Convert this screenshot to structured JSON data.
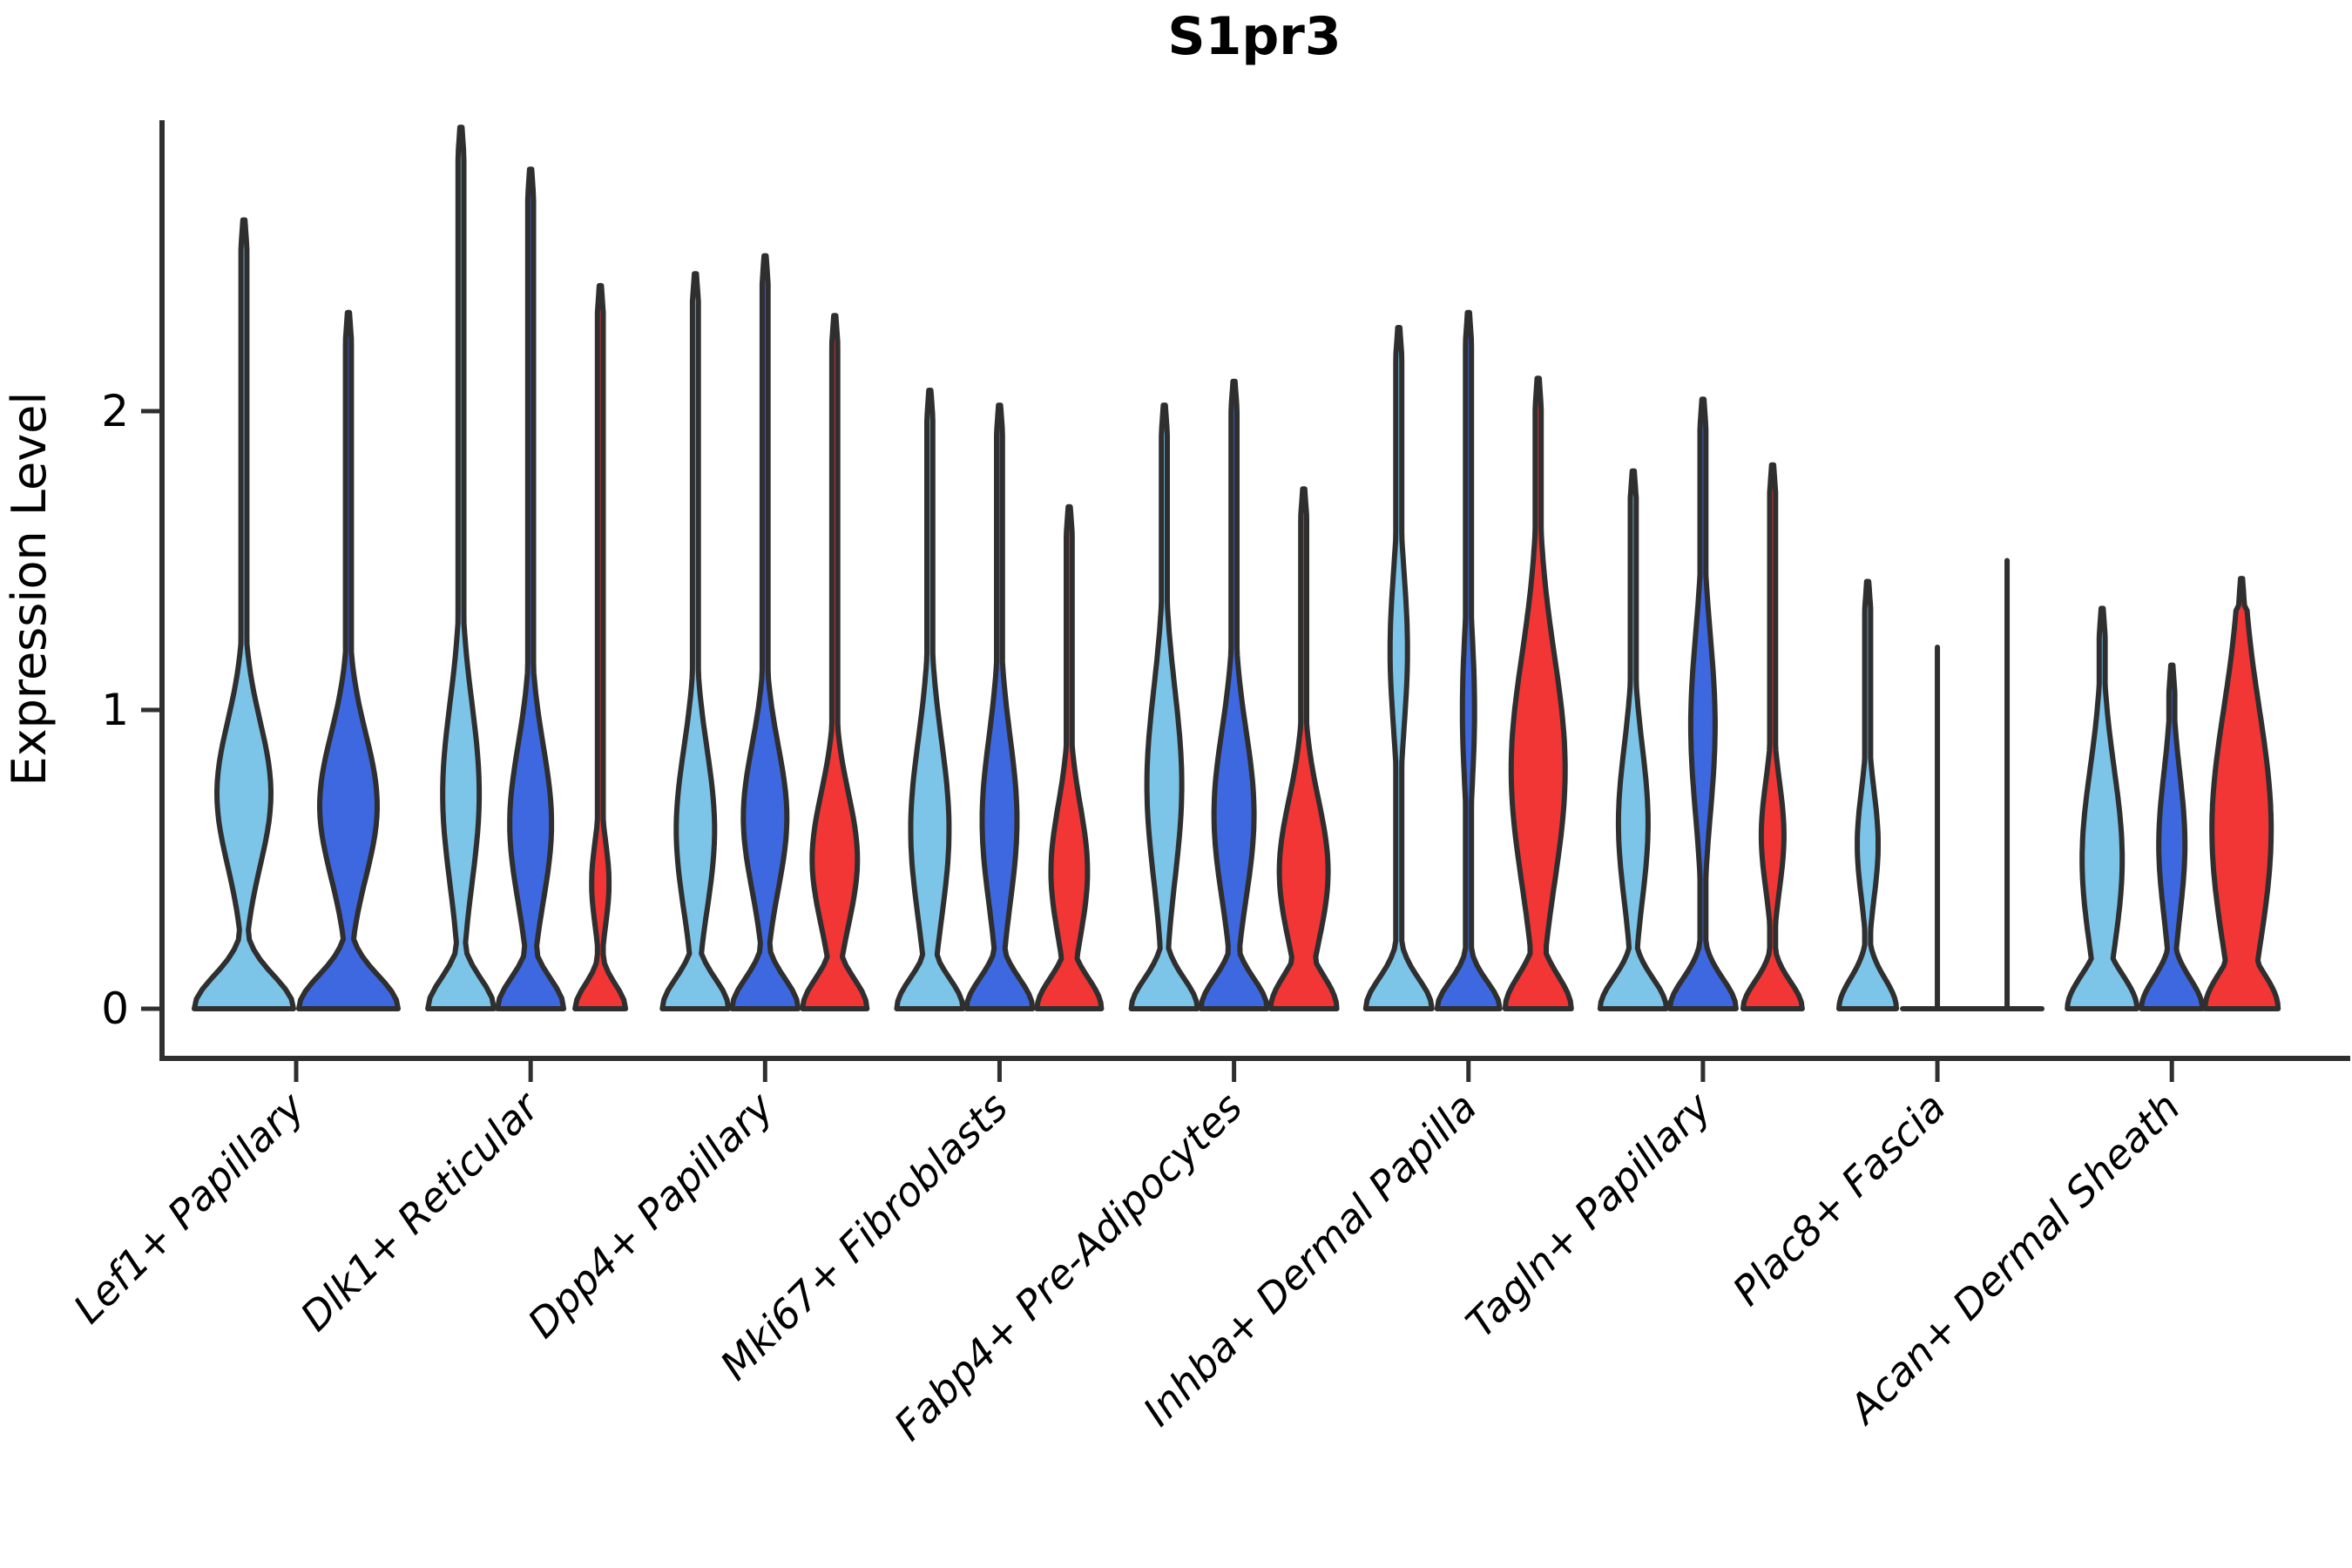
{
  "chart_data": {
    "type": "violin",
    "title": "S1pr3",
    "xlabel": "",
    "ylabel": "Expression Level",
    "yticks": [
      0,
      1,
      2
    ],
    "ylim": [
      -0.17,
      2.97
    ],
    "grid": false,
    "legend": "none",
    "outline_color": "#2F2F2F",
    "background_color": "#FFFFFF",
    "split_colors": {
      "light_blue": "#7CC5E9",
      "dark_blue": "#3D68E0",
      "red": "#F23535"
    },
    "categories": [
      "Lef1+ Papillary",
      "Dlk1+ Reticular",
      "Dpp4+ Papillary",
      "Mki67+ Fibroblasts",
      "Fabp4+ Pre-Adipocytes",
      "Inhba+ Dermal Papilla",
      "Tagln+ Papillary",
      "Plac8+ Fascia",
      "Acan+ Dermal Sheath"
    ],
    "groups": [
      {
        "label": "Lef1+ Papillary",
        "violins": [
          {
            "split": "light_blue",
            "kind": "violin",
            "offset": -60,
            "tip": 2.64,
            "base_hw": 57,
            "base_sigma": 0.11,
            "bulge_center": 0.72,
            "bulge_hw": 31,
            "bulge_sigma": 0.24
          },
          {
            "split": "dark_blue",
            "kind": "violin",
            "offset": 60,
            "tip": 2.33,
            "base_hw": 57,
            "base_sigma": 0.11,
            "bulge_center": 0.68,
            "bulge_hw": 33,
            "bulge_sigma": 0.24
          }
        ]
      },
      {
        "label": "Dlk1+ Reticular",
        "violins": [
          {
            "split": "light_blue",
            "kind": "violin",
            "offset": -80,
            "tip": 2.95,
            "base_hw": 38,
            "base_sigma": 0.1,
            "bulge_center": 0.72,
            "bulge_hw": 21,
            "bulge_sigma": 0.3
          },
          {
            "split": "dark_blue",
            "kind": "violin",
            "offset": 0,
            "tip": 2.81,
            "base_hw": 38,
            "base_sigma": 0.1,
            "bulge_center": 0.62,
            "bulge_hw": 24,
            "bulge_sigma": 0.26
          },
          {
            "split": "red",
            "kind": "violin",
            "offset": 80,
            "tip": 2.42,
            "base_hw": 29,
            "base_sigma": 0.08,
            "bulge_center": 0.42,
            "bulge_hw": 10,
            "bulge_sigma": 0.14
          }
        ]
      },
      {
        "label": "Dpp4+ Papillary",
        "violins": [
          {
            "split": "light_blue",
            "kind": "violin",
            "offset": -80,
            "tip": 2.46,
            "base_hw": 38,
            "base_sigma": 0.1,
            "bulge_center": 0.6,
            "bulge_hw": 22,
            "bulge_sigma": 0.27
          },
          {
            "split": "dark_blue",
            "kind": "violin",
            "offset": 0,
            "tip": 2.52,
            "base_hw": 38,
            "base_sigma": 0.1,
            "bulge_center": 0.64,
            "bulge_hw": 25,
            "bulge_sigma": 0.24
          },
          {
            "split": "red",
            "kind": "violin",
            "offset": 80,
            "tip": 2.32,
            "base_hw": 37,
            "base_sigma": 0.1,
            "bulge_center": 0.5,
            "bulge_hw": 26,
            "bulge_sigma": 0.22
          }
        ]
      },
      {
        "label": "Mki67+ Fibroblasts",
        "violins": [
          {
            "split": "light_blue",
            "kind": "violin",
            "offset": -80,
            "tip": 2.07,
            "base_hw": 38,
            "base_sigma": 0.1,
            "bulge_center": 0.6,
            "bulge_hw": 22,
            "bulge_sigma": 0.3
          },
          {
            "split": "dark_blue",
            "kind": "violin",
            "offset": 0,
            "tip": 2.02,
            "base_hw": 38,
            "base_sigma": 0.1,
            "bulge_center": 0.63,
            "bulge_hw": 20,
            "bulge_sigma": 0.28
          },
          {
            "split": "red",
            "kind": "violin",
            "offset": 80,
            "tip": 1.68,
            "base_hw": 37,
            "base_sigma": 0.1,
            "bulge_center": 0.46,
            "bulge_hw": 21,
            "bulge_sigma": 0.22
          }
        ]
      },
      {
        "label": "Fabp4+ Pre-Adipocytes",
        "violins": [
          {
            "split": "light_blue",
            "kind": "violin",
            "offset": -80,
            "tip": 2.02,
            "base_hw": 38,
            "base_sigma": 0.1,
            "bulge_center": 0.75,
            "bulge_hw": 20,
            "bulge_sigma": 0.32
          },
          {
            "split": "dark_blue",
            "kind": "violin",
            "offset": 0,
            "tip": 2.1,
            "base_hw": 38,
            "base_sigma": 0.1,
            "bulge_center": 0.65,
            "bulge_hw": 23,
            "bulge_sigma": 0.28
          },
          {
            "split": "red",
            "kind": "violin",
            "offset": 80,
            "tip": 1.74,
            "base_hw": 38,
            "base_sigma": 0.11,
            "bulge_center": 0.46,
            "bulge_hw": 28,
            "bulge_sigma": 0.24
          }
        ]
      },
      {
        "label": "Inhba+ Dermal Papilla",
        "violins": [
          {
            "split": "light_blue",
            "kind": "violin",
            "offset": -80,
            "tip": 2.28,
            "base_hw": 38,
            "base_sigma": 0.1,
            "bulge_center": 1.2,
            "bulge_hw": 10,
            "bulge_sigma": 0.26
          },
          {
            "split": "dark_blue",
            "kind": "violin",
            "offset": 0,
            "tip": 2.33,
            "base_hw": 36,
            "base_sigma": 0.09,
            "bulge_center": 1.0,
            "bulge_hw": 7,
            "bulge_sigma": 0.26
          },
          {
            "split": "red",
            "kind": "violin",
            "offset": 80,
            "tip": 2.11,
            "base_hw": 38,
            "base_sigma": 0.11,
            "bulge_center": 0.8,
            "bulge_hw": 31,
            "bulge_sigma": 0.38
          }
        ]
      },
      {
        "label": "Tagln+ Papillary",
        "violins": [
          {
            "split": "light_blue",
            "kind": "violin",
            "offset": -80,
            "tip": 1.8,
            "base_hw": 38,
            "base_sigma": 0.1,
            "bulge_center": 0.62,
            "bulge_hw": 17,
            "bulge_sigma": 0.26
          },
          {
            "split": "dark_blue",
            "kind": "violin",
            "offset": 0,
            "tip": 2.04,
            "base_hw": 38,
            "base_sigma": 0.1,
            "bulge_center": 0.95,
            "bulge_hw": 14,
            "bulge_sigma": 0.3
          },
          {
            "split": "red",
            "kind": "violin",
            "offset": 80,
            "tip": 1.82,
            "base_hw": 34,
            "base_sigma": 0.09,
            "bulge_center": 0.58,
            "bulge_hw": 13,
            "bulge_sigma": 0.18
          }
        ]
      },
      {
        "label": "Plac8+ Fascia",
        "violins": [
          {
            "split": "light_blue",
            "kind": "violin",
            "offset": -80,
            "tip": 1.43,
            "base_hw": 33,
            "base_sigma": 0.1,
            "bulge_center": 0.55,
            "bulge_hw": 12,
            "bulge_sigma": 0.18
          },
          {
            "split": "dark_blue",
            "kind": "line",
            "offset": 0,
            "tip": 1.21
          },
          {
            "split": "red",
            "kind": "line",
            "offset": 80,
            "tip": 1.5
          }
        ]
      },
      {
        "label": "Acan+ Dermal Sheath",
        "violins": [
          {
            "split": "light_blue",
            "kind": "violin",
            "offset": -80,
            "tip": 1.34,
            "base_hw": 40,
            "base_sigma": 0.11,
            "bulge_center": 0.5,
            "bulge_hw": 23,
            "bulge_sigma": 0.3
          },
          {
            "split": "dark_blue",
            "kind": "violin",
            "offset": 0,
            "tip": 1.15,
            "base_hw": 35,
            "base_sigma": 0.1,
            "bulge_center": 0.55,
            "bulge_hw": 15,
            "bulge_sigma": 0.24
          },
          {
            "split": "red",
            "kind": "violin",
            "offset": 80,
            "tip": 1.44,
            "base_hw": 42,
            "base_sigma": 0.12,
            "bulge_center": 0.6,
            "bulge_hw": 34,
            "bulge_sigma": 0.4
          }
        ]
      }
    ]
  }
}
